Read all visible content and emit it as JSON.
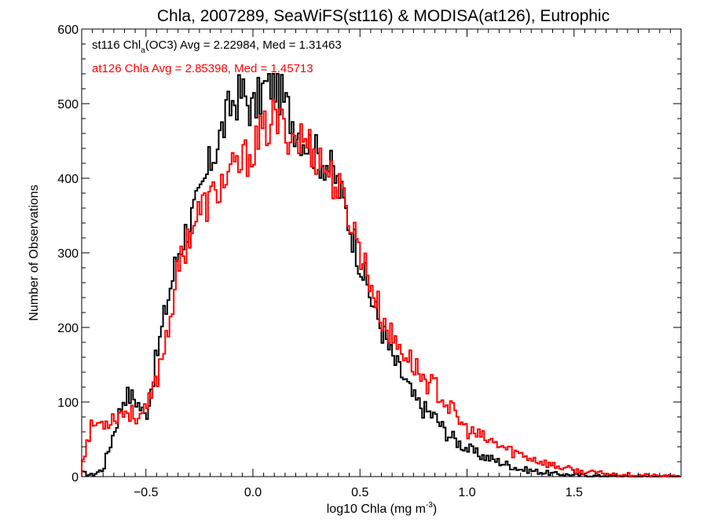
{
  "chart_data": {
    "type": "line",
    "title": "Chla, 2007289, SeaWiFS(st116) & MODISA(at126), Eutrophic",
    "xlabel": {
      "main": "log10 Chla (mg m",
      "sup": "-3",
      "end": ")"
    },
    "ylabel": "Number of Observations",
    "xlim": [
      -0.8,
      2.0
    ],
    "ylim": [
      0,
      600
    ],
    "x_ticks": [
      {
        "value": -0.5,
        "label": "−0.5"
      },
      {
        "value": 0.0,
        "label": "0.0"
      },
      {
        "value": 0.5,
        "label": "0.5"
      },
      {
        "value": 1.0,
        "label": "1.0"
      },
      {
        "value": 1.5,
        "label": "1.5"
      }
    ],
    "y_ticks": [
      {
        "value": 0,
        "label": "0"
      },
      {
        "value": 100,
        "label": "100"
      },
      {
        "value": 200,
        "label": "200"
      },
      {
        "value": 300,
        "label": "300"
      },
      {
        "value": 400,
        "label": "400"
      },
      {
        "value": 500,
        "label": "500"
      },
      {
        "value": 600,
        "label": "600"
      }
    ],
    "grid": false,
    "legend_position": "top-left",
    "legend": {
      "st116": {
        "pre": "st116 Chl",
        "sub": "a",
        "post": "(OC3) Avg = 2.22984, Med = 1.31463"
      },
      "at126": {
        "text": "at126 Chla Avg = 2.85398, Med = 1.45713"
      }
    },
    "series": [
      {
        "name": "st116",
        "color": "#000000",
        "x": [
          -0.8,
          -0.75,
          -0.7,
          -0.65,
          -0.6,
          -0.55,
          -0.5,
          -0.45,
          -0.4,
          -0.35,
          -0.3,
          -0.25,
          -0.2,
          -0.15,
          -0.1,
          -0.05,
          0.0,
          0.05,
          0.1,
          0.15,
          0.2,
          0.25,
          0.3,
          0.35,
          0.4,
          0.45,
          0.5,
          0.55,
          0.6,
          0.65,
          0.7,
          0.75,
          0.8,
          0.85,
          0.9,
          0.95,
          1.0,
          1.05,
          1.1,
          1.15,
          1.2,
          1.25,
          1.3,
          1.35,
          1.4,
          1.45,
          1.5,
          1.55,
          1.6,
          1.65,
          1.7,
          1.75,
          1.8,
          1.85,
          1.9,
          1.95,
          2.0
        ],
        "y": [
          5,
          2,
          10,
          60,
          110,
          105,
          80,
          160,
          235,
          300,
          340,
          370,
          420,
          460,
          500,
          515,
          490,
          520,
          530,
          500,
          470,
          450,
          430,
          420,
          390,
          340,
          290,
          240,
          200,
          160,
          135,
          105,
          90,
          80,
          60,
          48,
          38,
          30,
          25,
          20,
          15,
          10,
          8,
          6,
          4,
          3,
          2,
          2,
          1,
          1,
          1,
          0,
          0,
          0,
          0,
          0,
          0
        ]
      },
      {
        "name": "at126",
        "color": "#ff0000",
        "x": [
          -0.8,
          -0.75,
          -0.7,
          -0.65,
          -0.6,
          -0.55,
          -0.5,
          -0.45,
          -0.4,
          -0.35,
          -0.3,
          -0.25,
          -0.2,
          -0.15,
          -0.1,
          -0.05,
          0.0,
          0.05,
          0.1,
          0.15,
          0.2,
          0.25,
          0.3,
          0.35,
          0.4,
          0.45,
          0.5,
          0.55,
          0.6,
          0.65,
          0.7,
          0.75,
          0.8,
          0.85,
          0.9,
          0.95,
          1.0,
          1.05,
          1.1,
          1.15,
          1.2,
          1.25,
          1.3,
          1.35,
          1.4,
          1.45,
          1.5,
          1.55,
          1.6,
          1.65,
          1.7,
          1.75,
          1.8,
          1.85,
          1.9,
          1.95,
          2.0
        ],
        "y": [
          20,
          70,
          72,
          80,
          88,
          82,
          85,
          130,
          195,
          275,
          325,
          355,
          370,
          390,
          405,
          420,
          440,
          460,
          480,
          465,
          455,
          450,
          430,
          410,
          385,
          350,
          305,
          260,
          215,
          185,
          170,
          150,
          130,
          120,
          100,
          80,
          62,
          55,
          48,
          42,
          35,
          30,
          25,
          20,
          15,
          12,
          8,
          6,
          5,
          4,
          3,
          3,
          2,
          2,
          1,
          1,
          0
        ]
      }
    ]
  }
}
